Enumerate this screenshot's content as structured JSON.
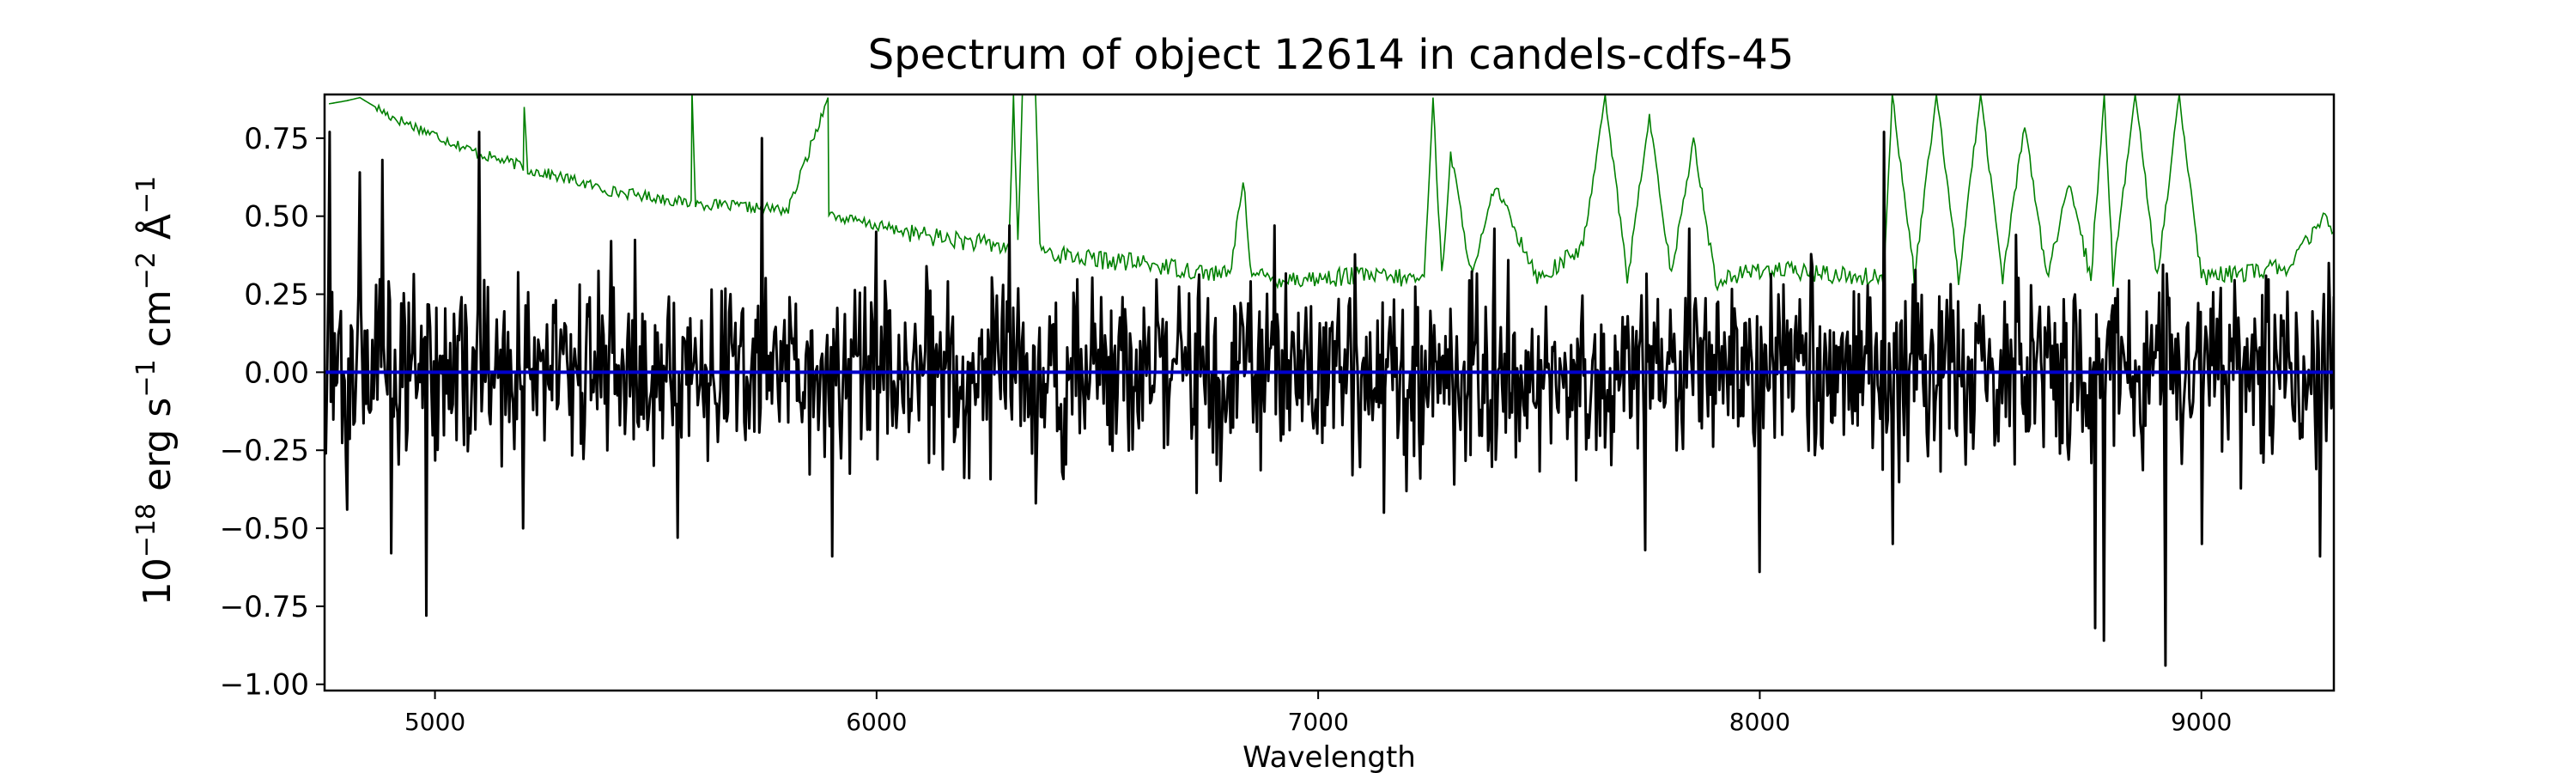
{
  "chart_data": {
    "type": "line",
    "title": "Spectrum of object 12614 in candels-cdfs-45",
    "xlabel": "Wavelength",
    "ylabel": {
      "base": "10",
      "exp": "−18",
      "text1": " erg s",
      "exp1": "−1",
      "text2": " cm",
      "exp2": "−2",
      "text3": " Å",
      "exp3": "−1"
    },
    "xlim": [
      4750,
      9300
    ],
    "ylim": [
      -1.02,
      0.89
    ],
    "xticks": [
      5000,
      6000,
      7000,
      8000,
      9000
    ],
    "xtick_labels": [
      "5000",
      "6000",
      "7000",
      "8000",
      "9000"
    ],
    "yticks": [
      0.75,
      0.5,
      0.25,
      0.0,
      -0.25,
      -0.5,
      -0.75,
      -1.0
    ],
    "ytick_labels": [
      "0.75",
      "0.50",
      "0.25",
      "0.00",
      "−0.25",
      "−0.50",
      "−0.75",
      "−1.00"
    ],
    "grid": false,
    "series": [
      {
        "color": "#008000",
        "description_of_shape": "sky/continuum model",
        "x": [
          4760,
          4800,
          4830,
          4900,
          5000,
          5100,
          5200,
          5202,
          5210,
          5300,
          5400,
          5500,
          5580,
          5582,
          5590,
          5700,
          5800,
          5890,
          5892,
          5900,
          6000,
          6100,
          6200,
          6300,
          6310,
          6320,
          6330,
          6360,
          6370,
          6400,
          6500,
          6600,
          6700,
          6800,
          6830,
          6850,
          6900,
          7000,
          7100,
          7200,
          7240,
          7260,
          7280,
          7300,
          7350,
          7400,
          7500,
          7600,
          7650,
          7700,
          7750,
          7800,
          7850,
          7900,
          8000,
          8100,
          8200,
          8280,
          8300,
          8350,
          8400,
          8450,
          8500,
          8550,
          8600,
          8650,
          8700,
          8750,
          8780,
          8800,
          8850,
          8900,
          8950,
          9000,
          9100,
          9200,
          9280,
          9300
        ],
        "y": [
          0.86,
          0.87,
          0.88,
          0.82,
          0.76,
          0.7,
          0.66,
          0.85,
          0.65,
          0.62,
          0.58,
          0.56,
          0.54,
          0.9,
          0.54,
          0.53,
          0.52,
          0.88,
          0.52,
          0.5,
          0.47,
          0.44,
          0.42,
          0.4,
          0.89,
          0.4,
          0.89,
          0.89,
          0.4,
          0.38,
          0.36,
          0.35,
          0.33,
          0.31,
          0.62,
          0.31,
          0.3,
          0.3,
          0.31,
          0.3,
          0.3,
          0.88,
          0.3,
          0.7,
          0.3,
          0.6,
          0.3,
          0.4,
          0.89,
          0.3,
          0.82,
          0.3,
          0.75,
          0.29,
          0.33,
          0.32,
          0.31,
          0.3,
          0.89,
          0.3,
          0.89,
          0.3,
          0.89,
          0.3,
          0.8,
          0.3,
          0.6,
          0.3,
          0.89,
          0.3,
          0.89,
          0.3,
          0.89,
          0.3,
          0.32,
          0.34,
          0.5,
          0.45
        ],
        "noise_seed": 17,
        "noise_amp": 0.06
      },
      {
        "color": "#000000",
        "description_of_shape": "observed flux, noisy around zero",
        "x_start": 4750,
        "x_end": 9300,
        "n_points": 1600,
        "noise_seed": 42,
        "noise_amp": 0.22,
        "spikes": [
          {
            "x": 4760,
            "y": 0.77
          },
          {
            "x": 4800,
            "y": -0.44
          },
          {
            "x": 4830,
            "y": 0.64
          },
          {
            "x": 4880,
            "y": 0.68
          },
          {
            "x": 4900,
            "y": -0.58
          },
          {
            "x": 4980,
            "y": -0.78
          },
          {
            "x": 5100,
            "y": 0.77
          },
          {
            "x": 5200,
            "y": -0.5
          },
          {
            "x": 5400,
            "y": 0.42
          },
          {
            "x": 5550,
            "y": -0.53
          },
          {
            "x": 5740,
            "y": 0.75
          },
          {
            "x": 5900,
            "y": -0.59
          },
          {
            "x": 6000,
            "y": 0.45
          },
          {
            "x": 6300,
            "y": 0.47
          },
          {
            "x": 6360,
            "y": -0.42
          },
          {
            "x": 6900,
            "y": 0.47
          },
          {
            "x": 7150,
            "y": -0.45
          },
          {
            "x": 7400,
            "y": 0.46
          },
          {
            "x": 7740,
            "y": -0.57
          },
          {
            "x": 7840,
            "y": 0.46
          },
          {
            "x": 8000,
            "y": 0.44
          },
          {
            "x": 8000,
            "y": -0.64
          },
          {
            "x": 8280,
            "y": 0.77
          },
          {
            "x": 8300,
            "y": -0.55
          },
          {
            "x": 8580,
            "y": 0.44
          },
          {
            "x": 8760,
            "y": -0.82
          },
          {
            "x": 8780,
            "y": -0.86
          },
          {
            "x": 8920,
            "y": -0.94
          },
          {
            "x": 9000,
            "y": -0.55
          },
          {
            "x": 9270,
            "y": -0.59
          },
          {
            "x": 9290,
            "y": 0.35
          }
        ]
      },
      {
        "color": "#0000cc",
        "description_of_shape": "flat model at zero",
        "x": [
          4750,
          9300
        ],
        "y": [
          0.0,
          0.0
        ]
      }
    ]
  }
}
